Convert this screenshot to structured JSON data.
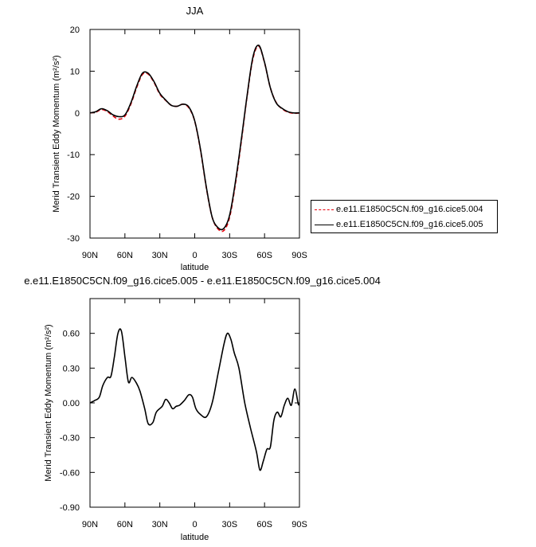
{
  "chart_data": [
    {
      "type": "line",
      "title": "JJA",
      "xlabel": "latitude",
      "ylabel": "Merid Transient Eddy Momentum (m²/s²)",
      "xlim": [
        90,
        -90
      ],
      "ylim": [
        -30,
        20
      ],
      "x_ticks": [
        90,
        60,
        30,
        0,
        -30,
        -60,
        -90
      ],
      "x_tick_labels": [
        "90N",
        "60N",
        "30N",
        "0",
        "30S",
        "60S",
        "90S"
      ],
      "y_ticks": [
        20,
        10,
        0,
        -10,
        -20,
        -30
      ],
      "y_tick_labels": [
        "20",
        "10",
        "0",
        "-10",
        "-20",
        "-30"
      ],
      "legend_position": "right",
      "series": [
        {
          "name": "e.e11.E1850C5CN.f09_g16.cice5.004",
          "color": "#e8000b",
          "dash": "dashed",
          "x": [
            90,
            85,
            80,
            75,
            70,
            65,
            60,
            55,
            50,
            45,
            40,
            35,
            30,
            25,
            20,
            15,
            10,
            5,
            0,
            -5,
            -10,
            -15,
            -20,
            -25,
            -30,
            -35,
            -40,
            -45,
            -50,
            -55,
            -60,
            -65,
            -70,
            -75,
            -80,
            -85,
            -90
          ],
          "y": [
            0,
            0.2,
            0.8,
            0.3,
            -0.8,
            -1.5,
            -0.8,
            2,
            6,
            9.2,
            9.3,
            7.3,
            4.5,
            3,
            1.8,
            1.6,
            2.1,
            1.2,
            -2,
            -9,
            -18,
            -25,
            -27.8,
            -28.2,
            -25,
            -17,
            -7,
            4,
            13,
            16,
            12,
            6,
            2.5,
            1,
            0.2,
            -0.1,
            0
          ]
        },
        {
          "name": "e.e11.E1850C5CN.f09_g16.cice5.005",
          "color": "#000000",
          "dash": "solid",
          "x": [
            90,
            85,
            80,
            75,
            70,
            65,
            60,
            55,
            50,
            45,
            40,
            35,
            30,
            25,
            20,
            15,
            10,
            5,
            0,
            -5,
            -10,
            -15,
            -20,
            -25,
            -30,
            -35,
            -40,
            -45,
            -50,
            -55,
            -60,
            -65,
            -70,
            -75,
            -80,
            -85,
            -90
          ],
          "y": [
            0,
            0.3,
            1.0,
            0.5,
            -0.5,
            -0.9,
            -0.5,
            2.3,
            6.3,
            9.5,
            9.5,
            7.5,
            4.7,
            3.1,
            1.8,
            1.6,
            2.1,
            1.4,
            -1.9,
            -8.8,
            -17.8,
            -25,
            -27.5,
            -27.7,
            -24.5,
            -16.5,
            -6.5,
            4.2,
            13.4,
            16.2,
            12.1,
            6,
            2.4,
            1.1,
            0.3,
            0,
            0
          ]
        }
      ]
    },
    {
      "type": "line",
      "title": "e.e11.E1850C5CN.f09_g16.cice5.005 - e.e11.E1850C5CN.f09_g16.cice5.004",
      "xlabel": "latitude",
      "ylabel": "Merid Transient Eddy Momentum (m²/s²)",
      "xlim": [
        90,
        -90
      ],
      "ylim": [
        -0.9,
        0.9
      ],
      "x_ticks": [
        90,
        60,
        30,
        0,
        -30,
        -60,
        -90
      ],
      "x_tick_labels": [
        "90N",
        "60N",
        "30N",
        "0",
        "30S",
        "60S",
        "90S"
      ],
      "y_ticks": [
        0.6,
        0.3,
        0,
        -0.3,
        -0.6,
        -0.9
      ],
      "y_tick_labels": [
        "0.60",
        "0.30",
        "0.00",
        "-0.30",
        "-0.60",
        "-0.90"
      ],
      "series": [
        {
          "color": "#000000",
          "dash": "solid",
          "x": [
            90,
            86,
            82,
            79,
            75,
            72,
            69,
            66,
            63,
            60,
            57,
            54,
            50,
            47,
            43,
            40,
            36,
            33,
            28,
            25,
            22,
            19,
            16,
            13,
            9,
            5,
            2,
            -1,
            -5,
            -10,
            -15,
            -20,
            -25,
            -28,
            -31,
            -34,
            -38,
            -43,
            -48,
            -53,
            -56,
            -59,
            -62,
            -65,
            -68,
            -71,
            -74,
            -77,
            -80,
            -83,
            -86,
            -89,
            -90
          ],
          "y": [
            0,
            0.02,
            0.05,
            0.15,
            0.22,
            0.23,
            0.4,
            0.6,
            0.62,
            0.4,
            0.18,
            0.22,
            0.17,
            0.1,
            -0.05,
            -0.18,
            -0.17,
            -0.08,
            -0.03,
            0.03,
            0,
            -0.05,
            -0.03,
            -0.02,
            0.02,
            0.07,
            0.05,
            -0.05,
            -0.1,
            -0.12,
            0,
            0.25,
            0.5,
            0.6,
            0.55,
            0.43,
            0.3,
            0,
            -0.22,
            -0.42,
            -0.58,
            -0.5,
            -0.4,
            -0.38,
            -0.15,
            -0.08,
            -0.12,
            -0.02,
            0.04,
            -0.02,
            0.12,
            -0.01,
            0
          ]
        }
      ]
    }
  ]
}
